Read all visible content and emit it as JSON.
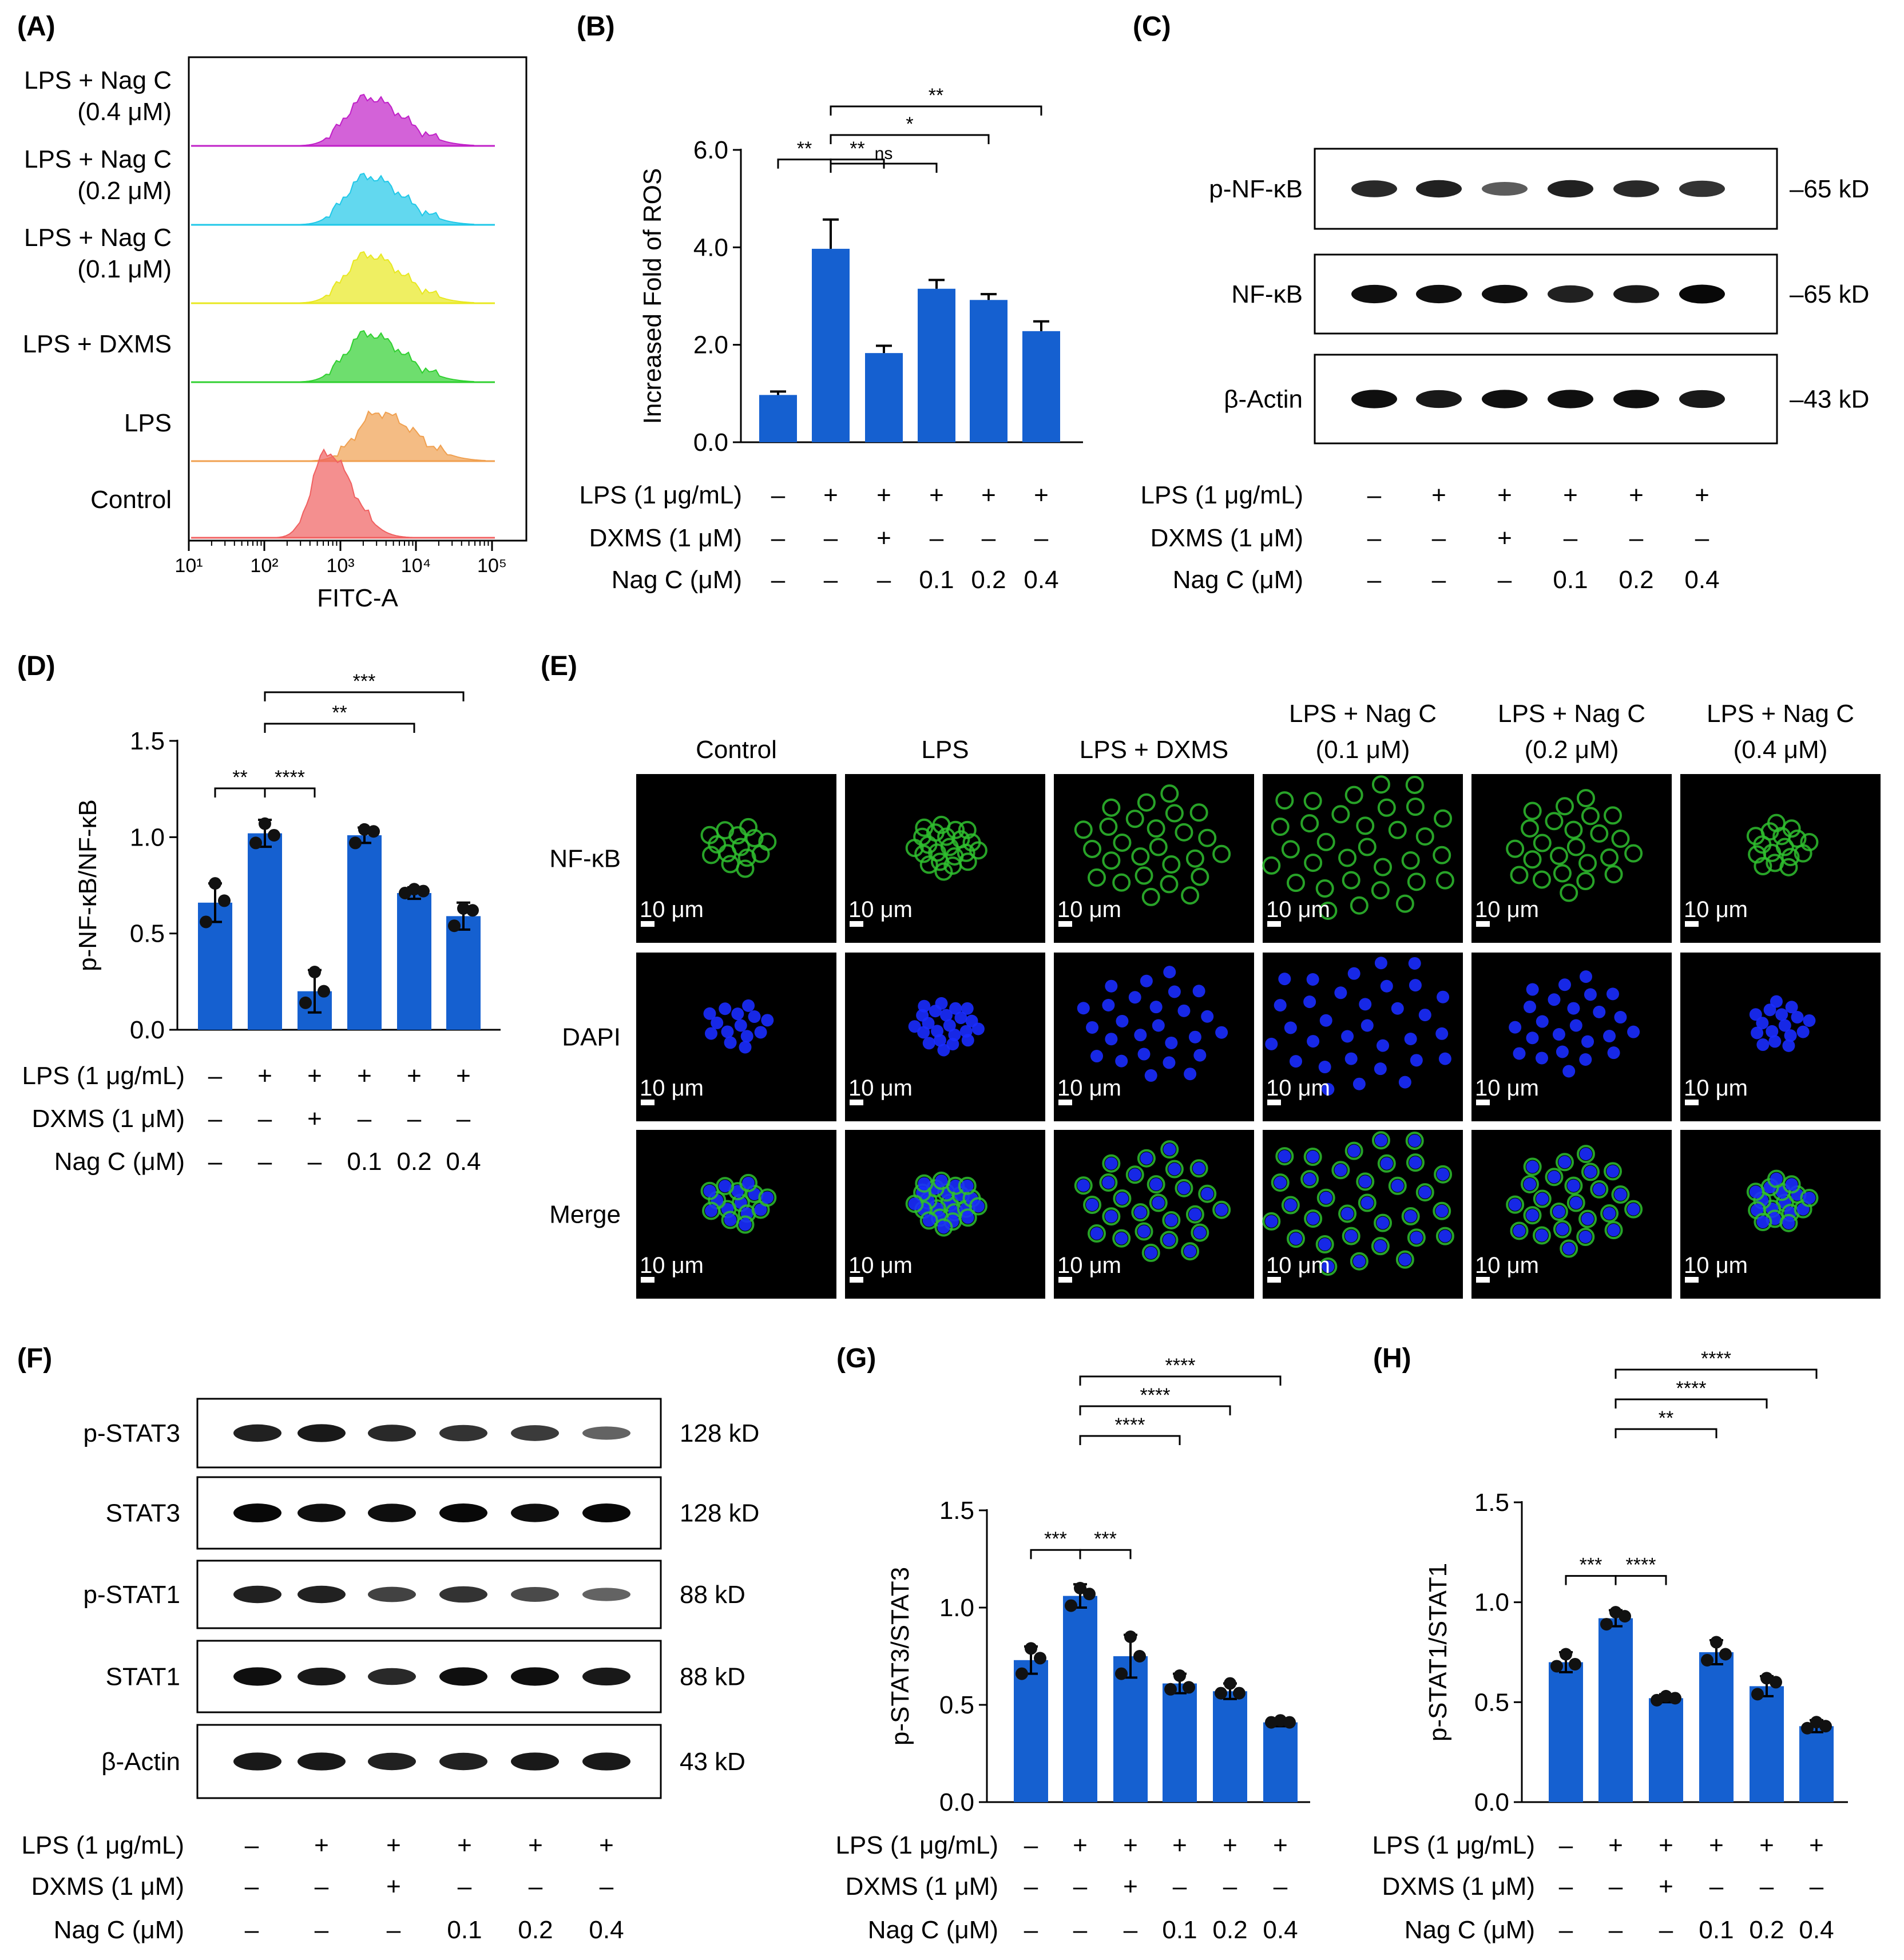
{
  "panels": {
    "A": {
      "label": "(A)",
      "rows": [
        {
          "l1": "LPS + Nag C",
          "l2": "(0.4 μM)",
          "color": "#c020c8"
        },
        {
          "l1": "LPS + Nag C",
          "l2": "(0.2 μM)",
          "color": "#20c8e8"
        },
        {
          "l1": "LPS + Nag C",
          "l2": "(0.1 μM)",
          "color": "#e8e820"
        },
        {
          "l1": "LPS + DXMS",
          "l2": "",
          "color": "#30d030"
        },
        {
          "l1": "LPS",
          "l2": "",
          "color": "#f0a050"
        },
        {
          "l1": "Control",
          "l2": "",
          "color": "#f06060"
        }
      ],
      "x_ticks": [
        "10¹",
        "10²",
        "10³",
        "10⁴",
        "10⁵"
      ],
      "xlabel": "FITC-A"
    },
    "B": {
      "label": "(B)"
    },
    "C": {
      "label": "(C)",
      "blots": [
        {
          "name": "p-NF-κB",
          "size": "–65 kD",
          "int": [
            0.75,
            0.8,
            0.45,
            0.8,
            0.75,
            0.7
          ]
        },
        {
          "name": "NF-κB",
          "size": "–65 kD",
          "int": [
            0.9,
            0.9,
            0.9,
            0.8,
            0.85,
            0.95
          ]
        },
        {
          "name": "β-Actin",
          "size": "–43 kD",
          "int": [
            0.9,
            0.85,
            0.9,
            0.9,
            0.9,
            0.85
          ]
        }
      ]
    },
    "D": {
      "label": "(D)"
    },
    "E": {
      "label": "(E)",
      "columns": [
        {
          "l1": "",
          "l2": "Control"
        },
        {
          "l1": "",
          "l2": "LPS"
        },
        {
          "l1": "",
          "l2": "LPS + DXMS"
        },
        {
          "l1": "LPS + Nag C",
          "l2": "(0.1 μM)"
        },
        {
          "l1": "LPS + Nag C",
          "l2": "(0.2 μM)"
        },
        {
          "l1": "LPS + Nag C",
          "l2": "(0.4 μM)"
        }
      ],
      "rows": [
        "NF-κB",
        "DAPI",
        "Merge"
      ],
      "scale_bar": "10 μm",
      "colors": {
        "nfkb": "#2fbf2f",
        "dapi": "#1a2cff"
      }
    },
    "F": {
      "label": "(F)",
      "blots": [
        {
          "name": "p-STAT3",
          "size": "128 kD",
          "int": [
            0.8,
            0.85,
            0.75,
            0.7,
            0.65,
            0.4
          ]
        },
        {
          "name": "STAT3",
          "size": "128 kD",
          "int": [
            0.95,
            0.9,
            0.9,
            0.95,
            0.9,
            0.95
          ]
        },
        {
          "name": "p-STAT1",
          "size": "88 kD",
          "int": [
            0.8,
            0.8,
            0.6,
            0.7,
            0.55,
            0.4
          ]
        },
        {
          "name": "STAT1",
          "size": "88 kD",
          "int": [
            0.9,
            0.85,
            0.75,
            0.9,
            0.9,
            0.85
          ]
        },
        {
          "name": "β-Actin",
          "size": "43 kD",
          "int": [
            0.85,
            0.85,
            0.8,
            0.8,
            0.85,
            0.85
          ]
        }
      ]
    },
    "G": {
      "label": "(G)"
    },
    "H": {
      "label": "(H)"
    }
  },
  "conditions": {
    "labels": [
      "LPS (1 μg/mL)",
      "DXMS (1 μM)",
      "Nag C (μM)"
    ],
    "lps": [
      "–",
      "+",
      "+",
      "+",
      "+",
      "+"
    ],
    "dxms": [
      "–",
      "–",
      "+",
      "–",
      "–",
      "–"
    ],
    "nag": [
      "–",
      "–",
      "–",
      "0.1",
      "0.2",
      "0.4"
    ]
  },
  "chart_data": [
    {
      "panel": "B",
      "type": "bar",
      "ylabel": "Increased Fold of ROS",
      "ylim": [
        0,
        6.0
      ],
      "yticks": [
        "0.0",
        "2.0",
        "4.0",
        "6.0"
      ],
      "values": [
        0.97,
        3.97,
        1.83,
        3.15,
        2.92,
        2.28
      ],
      "errors": [
        0.07,
        0.6,
        0.15,
        0.18,
        0.12,
        0.2
      ],
      "points": [],
      "color": "#1560d0",
      "significance": [
        {
          "from": 0,
          "to": 1,
          "text": "**"
        },
        {
          "from": 1,
          "to": 2,
          "text": "**"
        },
        {
          "from": 1,
          "to": 3,
          "text": "ns"
        },
        {
          "from": 1,
          "to": 4,
          "text": "*"
        },
        {
          "from": 1,
          "to": 5,
          "text": "**"
        }
      ]
    },
    {
      "panel": "D",
      "type": "bar",
      "ylabel": "p-NF-κB/NF-κB",
      "ylim": [
        0,
        1.5
      ],
      "yticks": [
        "0.0",
        "0.5",
        "1.0",
        "1.5"
      ],
      "values": [
        0.66,
        1.02,
        0.2,
        1.01,
        0.71,
        0.59
      ],
      "errors": [
        0.1,
        0.07,
        0.11,
        0.04,
        0.03,
        0.07
      ],
      "points": [
        [
          0.76,
          0.67,
          0.56
        ],
        [
          1.07,
          1.01,
          0.97
        ],
        [
          0.3,
          0.2,
          0.14
        ],
        [
          1.04,
          1.03,
          0.97
        ],
        [
          0.73,
          0.72,
          0.71
        ],
        [
          0.63,
          0.62,
          0.54
        ]
      ],
      "color": "#1560d0",
      "significance": [
        {
          "from": 0,
          "to": 1,
          "text": "**"
        },
        {
          "from": 1,
          "to": 2,
          "text": "****"
        },
        {
          "from": 1,
          "to": 4,
          "text": "**"
        },
        {
          "from": 1,
          "to": 5,
          "text": "***"
        }
      ]
    },
    {
      "panel": "G",
      "type": "bar",
      "ylabel": "p-STAT3/STAT3",
      "ylim": [
        0,
        1.5
      ],
      "yticks": [
        "0.0",
        "0.5",
        "1.0",
        "1.5"
      ],
      "values": [
        0.73,
        1.06,
        0.75,
        0.61,
        0.57,
        0.41
      ],
      "errors": [
        0.07,
        0.06,
        0.11,
        0.05,
        0.04,
        0.02
      ],
      "points": [
        [
          0.79,
          0.74,
          0.66
        ],
        [
          1.1,
          1.07,
          1.01
        ],
        [
          0.85,
          0.75,
          0.66
        ],
        [
          0.65,
          0.59,
          0.58
        ],
        [
          0.61,
          0.56,
          0.56
        ],
        [
          0.42,
          0.41,
          0.41
        ]
      ],
      "color": "#1560d0",
      "significance": [
        {
          "from": 0,
          "to": 1,
          "text": "***"
        },
        {
          "from": 1,
          "to": 2,
          "text": "***"
        },
        {
          "from": 1,
          "to": 3,
          "text": "****"
        },
        {
          "from": 1,
          "to": 4,
          "text": "****"
        },
        {
          "from": 1,
          "to": 5,
          "text": "****"
        }
      ]
    },
    {
      "panel": "H",
      "type": "bar",
      "ylabel": "p-STAT1/STAT1",
      "ylim": [
        0,
        1.5
      ],
      "yticks": [
        "0.0",
        "0.5",
        "1.0",
        "1.5"
      ],
      "values": [
        0.7,
        0.92,
        0.52,
        0.75,
        0.58,
        0.38
      ],
      "errors": [
        0.05,
        0.04,
        0.02,
        0.06,
        0.05,
        0.03
      ],
      "points": [
        [
          0.74,
          0.69,
          0.68
        ],
        [
          0.95,
          0.93,
          0.89
        ],
        [
          0.53,
          0.52,
          0.51
        ],
        [
          0.8,
          0.74,
          0.71
        ],
        [
          0.62,
          0.6,
          0.54
        ],
        [
          0.4,
          0.38,
          0.37
        ]
      ],
      "color": "#1560d0",
      "significance": [
        {
          "from": 0,
          "to": 1,
          "text": "***"
        },
        {
          "from": 1,
          "to": 2,
          "text": "****"
        },
        {
          "from": 1,
          "to": 3,
          "text": "**"
        },
        {
          "from": 1,
          "to": 4,
          "text": "****"
        },
        {
          "from": 1,
          "to": 5,
          "text": "****"
        }
      ]
    }
  ]
}
